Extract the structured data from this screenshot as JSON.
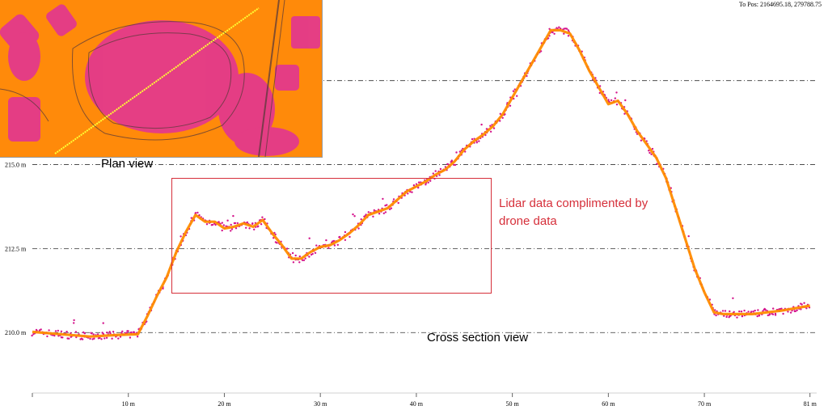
{
  "header": {
    "position_readout": "To Pos: 2164695.18, 279788.75"
  },
  "labels": {
    "plan_view": "Plan view",
    "cross_section": "Cross section view",
    "annotation": "Lidar data complimented by drone data"
  },
  "colors": {
    "drone_points": "#ff8c00",
    "lidar_points": "#d4148c",
    "annotation": "#d62f3a",
    "plan_background": "#ff8a0a"
  },
  "icons": {
    "plan_view_image": "lidar-plan-view-map"
  },
  "chart_data": {
    "type": "scatter",
    "title": "",
    "xlabel": "",
    "ylabel": "",
    "grid": "dash-dot horizontal lines",
    "x_ticks": [
      "10 m",
      "20 m",
      "30 m",
      "40 m",
      "50 m",
      "60 m",
      "70 m",
      "81 m"
    ],
    "x_tick_values": [
      10,
      20,
      30,
      40,
      50,
      60,
      70,
      81
    ],
    "y_ticks": [
      "210.0 m",
      "212.5 m",
      "215.0 m"
    ],
    "y_tick_values": [
      210.0,
      212.5,
      215.0
    ],
    "y_gridlines": [
      210.0,
      212.5,
      215.0,
      217.5
    ],
    "xlim": [
      0,
      81.7
    ],
    "ylim": [
      208.2,
      219.9
    ],
    "series": [
      {
        "name": "",
        "kind": "profile",
        "points": [
          [
            0,
            210.02
          ],
          [
            3,
            209.95
          ],
          [
            6,
            209.88
          ],
          [
            9,
            209.93
          ],
          [
            11,
            209.95
          ],
          [
            12,
            210.5
          ],
          [
            13,
            211.1
          ],
          [
            14,
            211.65
          ],
          [
            15,
            212.4
          ],
          [
            16,
            213.0
          ],
          [
            17,
            213.5
          ],
          [
            18,
            213.3
          ],
          [
            19,
            213.3
          ],
          [
            20,
            213.1
          ],
          [
            21,
            213.15
          ],
          [
            22,
            213.25
          ],
          [
            23,
            213.15
          ],
          [
            24,
            213.35
          ],
          [
            25,
            212.95
          ],
          [
            26,
            212.6
          ],
          [
            27,
            212.2
          ],
          [
            28,
            212.2
          ],
          [
            29,
            212.4
          ],
          [
            30,
            212.55
          ],
          [
            31,
            212.6
          ],
          [
            32,
            212.75
          ],
          [
            33,
            212.95
          ],
          [
            34,
            213.2
          ],
          [
            35,
            213.5
          ],
          [
            36,
            213.6
          ],
          [
            37,
            213.7
          ],
          [
            38,
            213.95
          ],
          [
            39,
            214.2
          ],
          [
            40,
            214.35
          ],
          [
            41,
            214.5
          ],
          [
            42,
            214.7
          ],
          [
            43,
            214.85
          ],
          [
            44,
            215.1
          ],
          [
            45,
            215.45
          ],
          [
            46,
            215.7
          ],
          [
            47,
            215.9
          ],
          [
            48,
            216.15
          ],
          [
            49,
            216.5
          ],
          [
            50,
            217.0
          ],
          [
            51,
            217.5
          ],
          [
            52,
            218.0
          ],
          [
            53,
            218.5
          ],
          [
            54,
            219.0
          ],
          [
            55,
            219.0
          ],
          [
            56,
            218.9
          ],
          [
            57,
            218.4
          ],
          [
            58,
            217.8
          ],
          [
            59,
            217.3
          ],
          [
            60,
            216.8
          ],
          [
            61,
            216.9
          ],
          [
            62,
            216.5
          ],
          [
            63,
            216.0
          ],
          [
            64,
            215.6
          ],
          [
            65,
            215.2
          ],
          [
            66,
            214.6
          ],
          [
            67,
            213.7
          ],
          [
            68,
            212.8
          ],
          [
            69,
            211.9
          ],
          [
            70,
            211.2
          ],
          [
            71,
            210.6
          ],
          [
            72,
            210.55
          ],
          [
            75,
            210.55
          ],
          [
            78,
            210.65
          ],
          [
            80,
            210.75
          ],
          [
            81,
            210.8
          ]
        ]
      }
    ],
    "annotations": [
      "Plan view",
      "Cross section view",
      "Lidar data complimented by drone data"
    ]
  }
}
